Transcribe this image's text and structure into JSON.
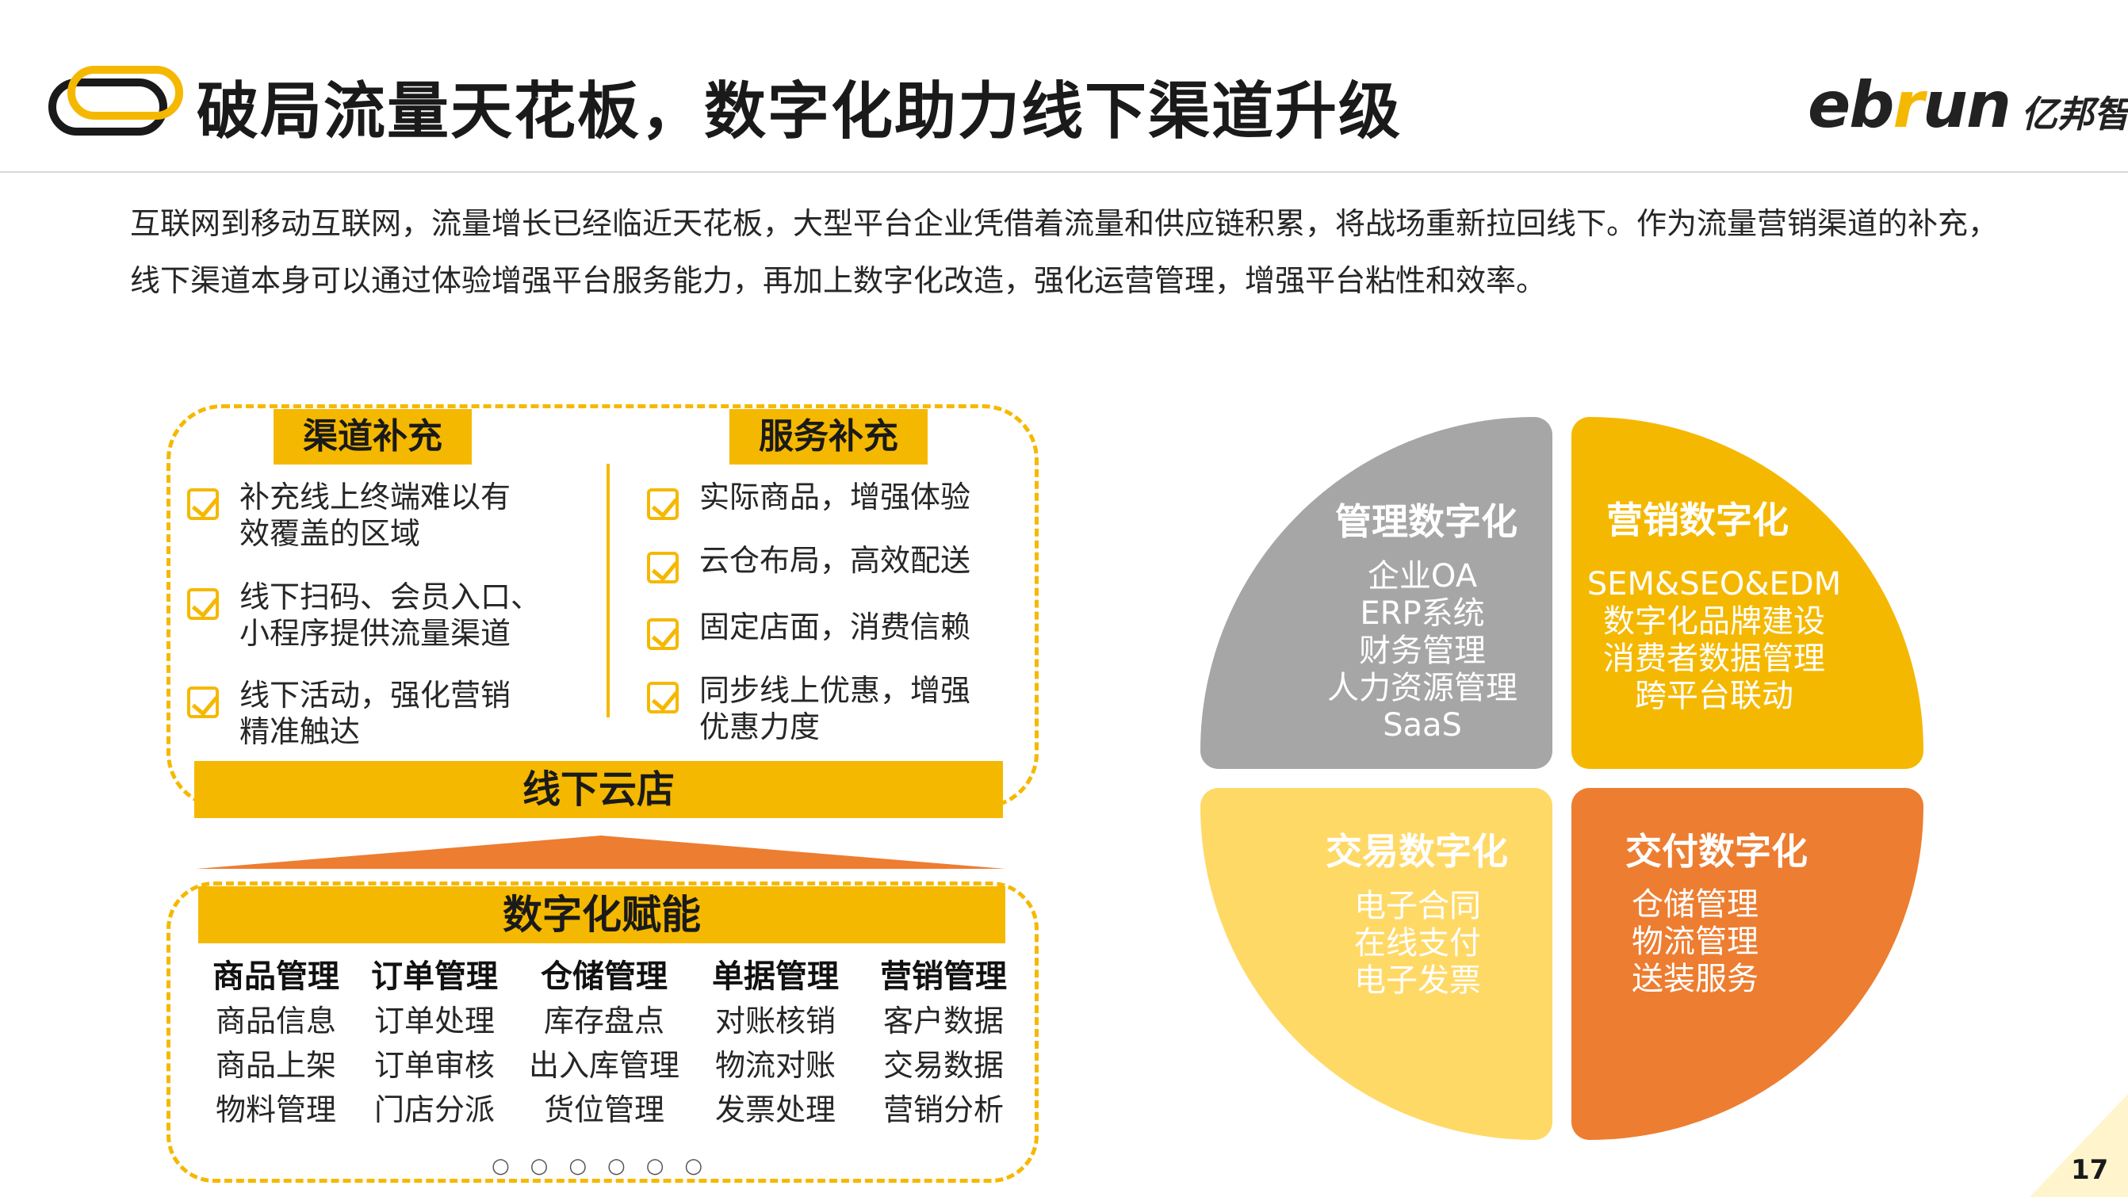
{
  "header": {
    "title": "破局流量天花板，数字化助力线下渠道升级",
    "brand_en_pre": "eb",
    "brand_en_accent": "r",
    "brand_en_post": "un",
    "brand_cn": "亿邦智库"
  },
  "intro": "互联网到移动互联网，流量增长已经临近天花板，大型平台企业凭借着流量和供应链积累，将战场重新拉回线下。作为流量营销渠道的补充，线下渠道本身可以通过体验增强平台服务能力，再加上数字化改造，强化运营管理，增强平台粘性和效率。",
  "left": {
    "channel": {
      "label": "渠道补充",
      "items": [
        "补充线上终端难以有\n效覆盖的区域",
        "线下扫码、会员入口、\n小程序提供流量渠道",
        "线下活动，强化营销\n精准触达"
      ]
    },
    "service": {
      "label": "服务补充",
      "items": [
        "实际商品，增强体验",
        "云仓布局，高效配送",
        "固定店面，消费信赖",
        "同步线上优惠，增强\n优惠力度"
      ]
    },
    "cloud_store": "线下云店",
    "enable": "数字化赋能",
    "capabilities": [
      {
        "head": "商品管理",
        "items": [
          "商品信息",
          "商品上架",
          "物料管理"
        ]
      },
      {
        "head": "订单管理",
        "items": [
          "订单处理",
          "订单审核",
          "门店分派"
        ]
      },
      {
        "head": "仓储管理",
        "items": [
          "库存盘点",
          "出入库管理",
          "货位管理"
        ]
      },
      {
        "head": "单据管理",
        "items": [
          "对账核销",
          "物流对账",
          "发票处理"
        ]
      },
      {
        "head": "营销管理",
        "items": [
          "客户数据",
          "交易数据",
          "营销分析"
        ]
      }
    ],
    "dots": "○○○○○○"
  },
  "circle": {
    "mgmt": {
      "title": "管理数字化",
      "items": "企业OA\nERP系统\n财务管理\n人力资源管理\nSaaS"
    },
    "mkt": {
      "title": "营销数字化",
      "items": "SEM&SEO&EDM\n数字化品牌建设\n消费者数据管理\n跨平台联动"
    },
    "trade": {
      "title": "交易数字化",
      "items": "电子合同\n在线支付\n电子发票"
    },
    "deliv": {
      "title": "交付数字化",
      "items": "仓储管理\n物流管理\n送装服务"
    }
  },
  "colors": {
    "accent": "#f5b800",
    "orange": "#ed7d31",
    "gray": "#a6a6a6",
    "light_yellow": "#ffd966"
  },
  "page_number": "17"
}
